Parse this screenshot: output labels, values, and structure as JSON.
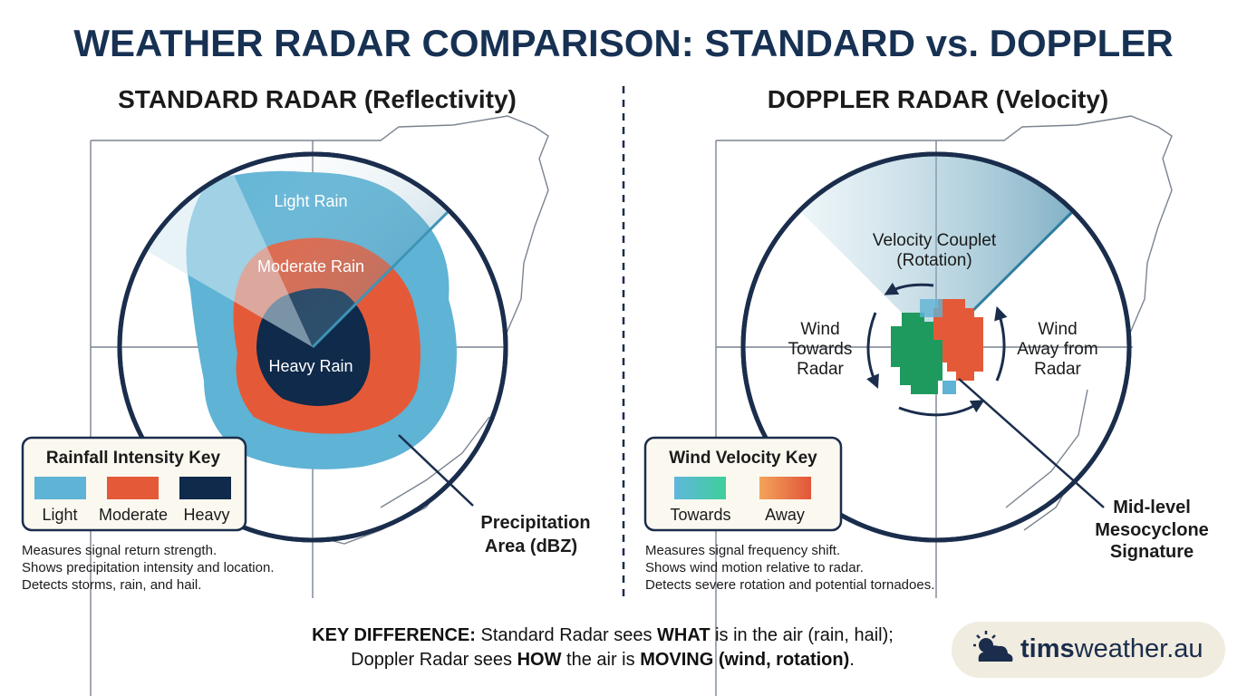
{
  "header": {
    "title": "WEATHER RADAR COMPARISON: STANDARD vs. DOPPLER"
  },
  "standard": {
    "title": "STANDARD RADAR (Reflectivity)",
    "zones": [
      "Light Rain",
      "Moderate Rain",
      "Heavy Rain"
    ],
    "callout": [
      "Precipitation",
      "Area (dBZ)"
    ],
    "key": {
      "title": "Rainfall Intensity Key",
      "items": [
        "Light",
        "Moderate",
        "Heavy"
      ]
    },
    "description": [
      "Measures signal return strength.",
      "Shows precipitation intensity and location.",
      "Detects storms, rain, and hail."
    ]
  },
  "doppler": {
    "title": "DOPPLER RADAR (Velocity)",
    "couplet": [
      "Velocity Couplet",
      "(Rotation)"
    ],
    "towards": [
      "Wind",
      "Towards",
      "Radar"
    ],
    "away": [
      "Wind",
      "Away from",
      "Radar"
    ],
    "callout": [
      "Mid-level",
      "Mesocyclone",
      "Signature"
    ],
    "key": {
      "title": "Wind Velocity Key",
      "items": [
        "Towards",
        "Away"
      ]
    },
    "description": [
      "Measures signal frequency shift.",
      "Shows wind motion relative to radar.",
      "Detects severe rotation and potential tornadoes."
    ]
  },
  "footer": {
    "lines": [
      [
        "KEY DIFFERENCE:",
        " Standard Radar sees ",
        "WHAT",
        " is in the air (rain, hail);"
      ],
      [
        "Doppler Radar sees ",
        "HOW",
        " the air is ",
        "MOVING (wind, rotation)",
        "."
      ]
    ],
    "logo": [
      "tims",
      "weather.au"
    ]
  }
}
